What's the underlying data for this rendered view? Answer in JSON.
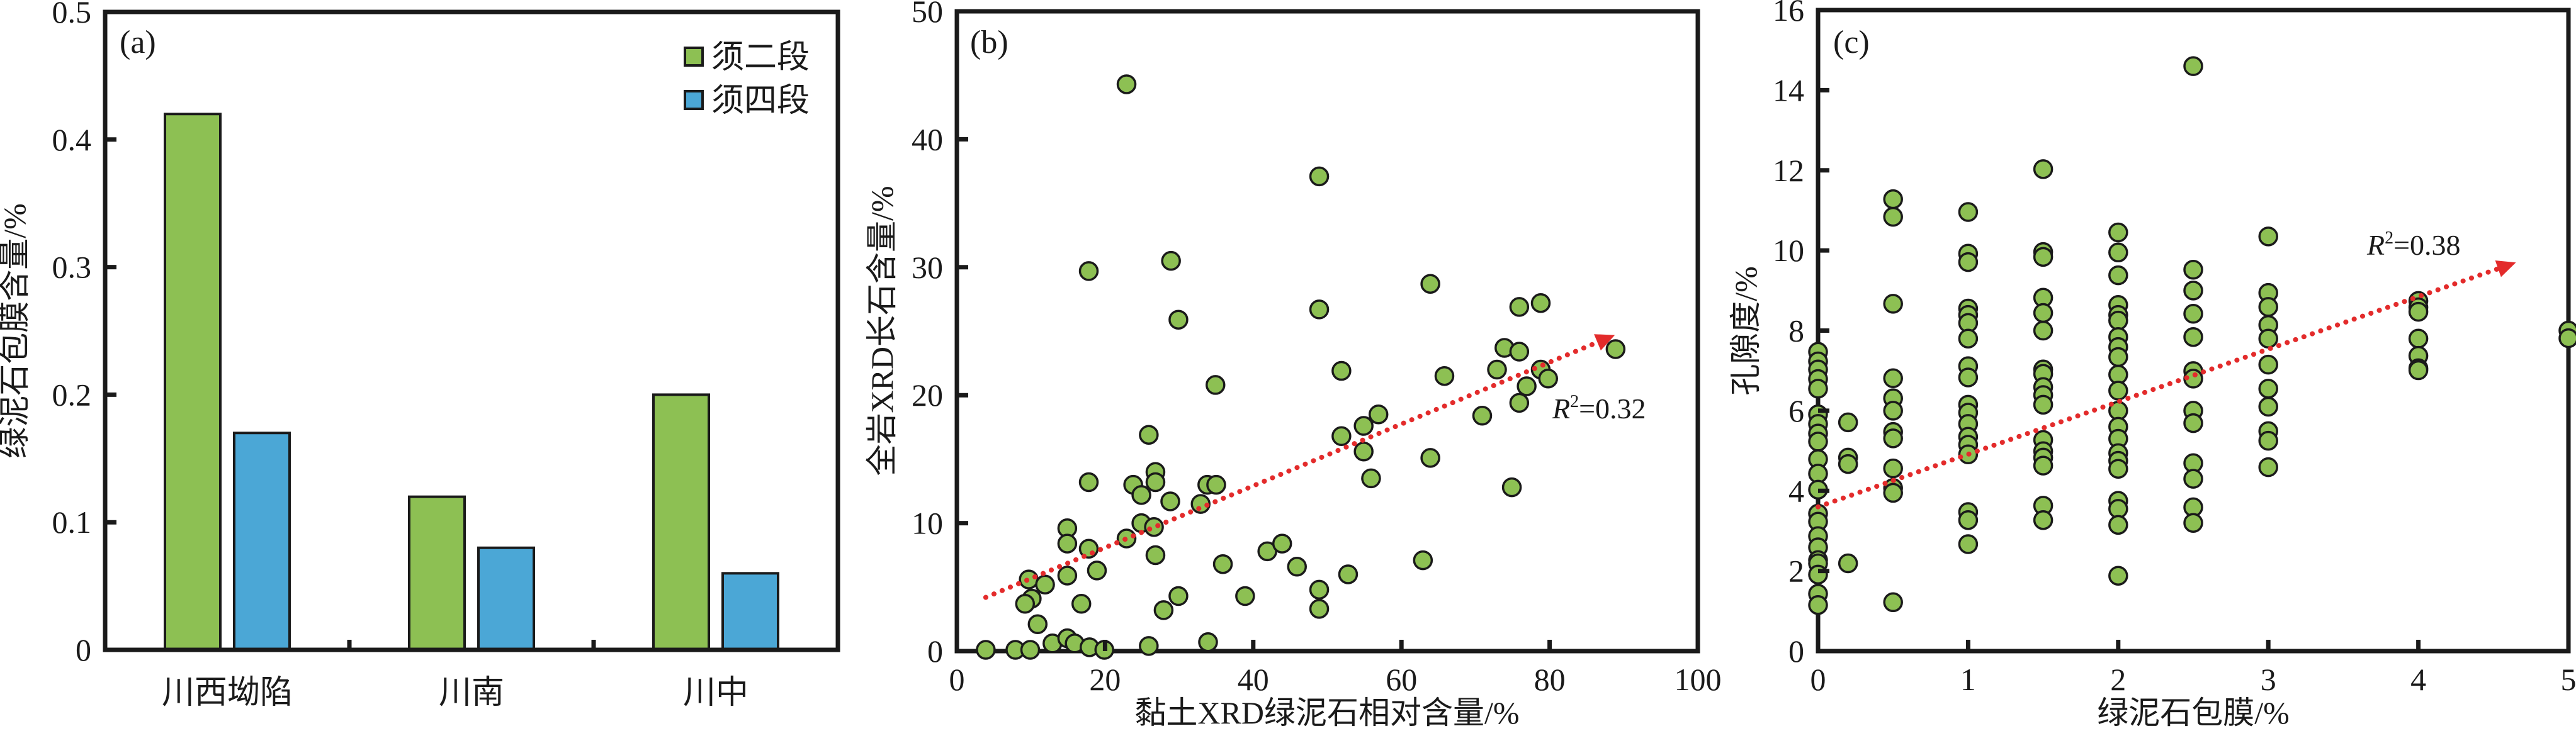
{
  "colors": {
    "green": "#8dc053",
    "blue": "#4ba7d6",
    "trend": "#e32b2b",
    "axis": "#1a1a1a"
  },
  "chart_data": [
    {
      "type": "bar",
      "panel_label": "(a)",
      "title": "",
      "xlabel": "",
      "ylabel": "绿泥石包膜含量/%",
      "ylim": [
        0,
        0.5
      ],
      "yticks": [
        "0",
        "0.1",
        "0.2",
        "0.3",
        "0.4",
        "0.5"
      ],
      "categories": [
        "川西坳陷",
        "川南",
        "川中"
      ],
      "series": [
        {
          "name": "须二段",
          "color": "#8dc053",
          "values": [
            0.42,
            0.12,
            0.2
          ]
        },
        {
          "name": "须四段",
          "color": "#4ba7d6",
          "values": [
            0.17,
            0.08,
            0.06
          ]
        }
      ],
      "legend": "top-right",
      "grid": false
    },
    {
      "type": "scatter",
      "panel_label": "(b)",
      "xlabel": "黏土XRD绿泥石相对含量/%",
      "ylabel": "全岩XRD长石含量/%",
      "xlim": [
        0,
        100
      ],
      "ylim": [
        0,
        50
      ],
      "xticks": [
        "0",
        "20",
        "40",
        "60",
        "80",
        "100"
      ],
      "yticks": [
        "0",
        "10",
        "20",
        "30",
        "40",
        "50"
      ],
      "annotation": {
        "prefix": "R",
        "sup": "2",
        "text": "=0.32"
      },
      "trendline": {
        "x": [
          3.9,
          88.8
        ],
        "y": [
          4.2,
          24.7
        ]
      },
      "grid": false,
      "points": [
        [
          22.9,
          44.3
        ],
        [
          48.9,
          37.1
        ],
        [
          17.8,
          29.7
        ],
        [
          28.9,
          30.5
        ],
        [
          29.9,
          25.9
        ],
        [
          48.9,
          26.7
        ],
        [
          63.9,
          28.7
        ],
        [
          75.9,
          26.9
        ],
        [
          78.8,
          27.2
        ],
        [
          73.9,
          23.7
        ],
        [
          75.9,
          23.4
        ],
        [
          88.9,
          23.6
        ],
        [
          51.9,
          21.9
        ],
        [
          65.8,
          21.5
        ],
        [
          72.9,
          22.0
        ],
        [
          78.8,
          22.0
        ],
        [
          79.8,
          21.3
        ],
        [
          76.9,
          20.7
        ],
        [
          75.9,
          19.4
        ],
        [
          70.9,
          18.4
        ],
        [
          56.9,
          18.5
        ],
        [
          54.9,
          17.6
        ],
        [
          51.9,
          16.8
        ],
        [
          54.9,
          15.6
        ],
        [
          63.9,
          15.1
        ],
        [
          55.9,
          13.5
        ],
        [
          74.9,
          12.8
        ],
        [
          62.9,
          7.1
        ],
        [
          52.8,
          6.0
        ],
        [
          34.9,
          20.8
        ],
        [
          25.9,
          16.9
        ],
        [
          26.8,
          14.0
        ],
        [
          26.8,
          13.2
        ],
        [
          17.8,
          13.2
        ],
        [
          23.8,
          13.0
        ],
        [
          24.9,
          12.2
        ],
        [
          28.8,
          11.7
        ],
        [
          32.9,
          11.5
        ],
        [
          33.8,
          13.0
        ],
        [
          35.0,
          13.0
        ],
        [
          24.9,
          10.0
        ],
        [
          26.6,
          9.7
        ],
        [
          22.9,
          8.8
        ],
        [
          14.9,
          9.6
        ],
        [
          14.9,
          8.4
        ],
        [
          17.8,
          8.0
        ],
        [
          26.8,
          7.5
        ],
        [
          35.9,
          6.8
        ],
        [
          41.9,
          7.8
        ],
        [
          43.9,
          8.4
        ],
        [
          45.9,
          6.6
        ],
        [
          48.9,
          4.8
        ],
        [
          48.9,
          3.3
        ],
        [
          9.7,
          5.6
        ],
        [
          11.9,
          5.2
        ],
        [
          10.1,
          4.1
        ],
        [
          9.2,
          3.7
        ],
        [
          10.9,
          2.1
        ],
        [
          14.9,
          5.9
        ],
        [
          18.9,
          6.3
        ],
        [
          16.8,
          3.7
        ],
        [
          29.9,
          4.3
        ],
        [
          27.9,
          3.2
        ],
        [
          38.9,
          4.3
        ],
        [
          3.9,
          0.1
        ],
        [
          7.9,
          0.1
        ],
        [
          9.9,
          0.1
        ],
        [
          12.9,
          0.6
        ],
        [
          14.9,
          1.0
        ],
        [
          15.9,
          0.6
        ],
        [
          17.9,
          0.3
        ],
        [
          19.9,
          0.1
        ],
        [
          25.9,
          0.4
        ],
        [
          33.9,
          0.7
        ]
      ]
    },
    {
      "type": "scatter",
      "panel_label": "(c)",
      "xlabel": "绿泥石包膜/%",
      "ylabel": "孔隙度/%",
      "xlim": [
        0,
        5
      ],
      "ylim": [
        0,
        16
      ],
      "xticks": [
        "0",
        "1",
        "2",
        "3",
        "4",
        "5"
      ],
      "yticks": [
        "0",
        "2",
        "4",
        "6",
        "8",
        "10",
        "12",
        "14",
        "16"
      ],
      "annotation": {
        "prefix": "R",
        "sup": "2",
        "text": "=0.38"
      },
      "trendline": {
        "x": [
          0,
          4.65
        ],
        "y": [
          3.6,
          9.7
        ]
      },
      "grid": false,
      "points": [
        [
          0,
          7.47
        ],
        [
          0,
          7.23
        ],
        [
          0,
          7.03
        ],
        [
          0,
          6.79
        ],
        [
          0,
          6.55
        ],
        [
          0,
          5.91
        ],
        [
          0,
          5.67
        ],
        [
          0,
          5.43
        ],
        [
          0,
          5.23
        ],
        [
          0,
          4.79
        ],
        [
          0,
          4.43
        ],
        [
          0,
          4.03
        ],
        [
          0,
          3.43
        ],
        [
          0,
          3.23
        ],
        [
          0,
          2.87
        ],
        [
          0,
          2.59
        ],
        [
          0,
          2.27
        ],
        [
          0,
          2.19
        ],
        [
          0,
          1.91
        ],
        [
          0,
          1.43
        ],
        [
          0,
          1.15
        ],
        [
          0.2,
          5.71
        ],
        [
          0.2,
          4.83
        ],
        [
          0.2,
          4.67
        ],
        [
          0.2,
          2.19
        ],
        [
          0.5,
          11.28
        ],
        [
          0.5,
          10.84
        ],
        [
          0.5,
          8.67
        ],
        [
          0.5,
          6.81
        ],
        [
          0.5,
          6.31
        ],
        [
          0.5,
          6.0
        ],
        [
          0.5,
          5.47
        ],
        [
          0.5,
          5.31
        ],
        [
          0.5,
          4.56
        ],
        [
          0.5,
          4.07
        ],
        [
          0.5,
          3.95
        ],
        [
          0.5,
          1.22
        ],
        [
          1,
          10.96
        ],
        [
          1,
          9.92
        ],
        [
          1,
          9.71
        ],
        [
          1,
          8.55
        ],
        [
          1,
          8.39
        ],
        [
          1,
          8.19
        ],
        [
          1,
          7.8
        ],
        [
          1,
          7.11
        ],
        [
          1,
          6.83
        ],
        [
          1,
          6.15
        ],
        [
          1,
          5.95
        ],
        [
          1,
          5.67
        ],
        [
          1,
          5.35
        ],
        [
          1,
          5.15
        ],
        [
          1,
          4.91
        ],
        [
          1,
          3.47
        ],
        [
          1,
          3.27
        ],
        [
          1,
          2.67
        ],
        [
          1.5,
          12.03
        ],
        [
          1.5,
          9.96
        ],
        [
          1.5,
          9.84
        ],
        [
          1.5,
          8.82
        ],
        [
          1.5,
          8.44
        ],
        [
          1.5,
          8.0
        ],
        [
          1.5,
          7.03
        ],
        [
          1.5,
          6.92
        ],
        [
          1.5,
          6.59
        ],
        [
          1.5,
          6.39
        ],
        [
          1.5,
          6.15
        ],
        [
          1.5,
          5.27
        ],
        [
          1.5,
          4.99
        ],
        [
          1.5,
          4.83
        ],
        [
          1.5,
          4.63
        ],
        [
          1.5,
          3.63
        ],
        [
          1.5,
          3.27
        ],
        [
          2,
          10.45
        ],
        [
          2,
          9.95
        ],
        [
          2,
          9.38
        ],
        [
          2,
          8.64
        ],
        [
          2,
          8.39
        ],
        [
          2,
          8.25
        ],
        [
          2,
          7.84
        ],
        [
          2,
          7.59
        ],
        [
          2,
          7.34
        ],
        [
          2,
          6.9
        ],
        [
          2,
          6.5
        ],
        [
          2,
          6.0
        ],
        [
          2,
          5.6
        ],
        [
          2,
          5.3
        ],
        [
          2,
          4.94
        ],
        [
          2,
          4.75
        ],
        [
          2,
          4.55
        ],
        [
          2,
          3.75
        ],
        [
          2,
          3.55
        ],
        [
          2,
          3.15
        ],
        [
          2,
          1.88
        ],
        [
          2.5,
          14.6
        ],
        [
          2.5,
          9.52
        ],
        [
          2.5,
          9.0
        ],
        [
          2.5,
          8.42
        ],
        [
          2.5,
          7.84
        ],
        [
          2.5,
          6.99
        ],
        [
          2.5,
          6.8
        ],
        [
          2.5,
          6.0
        ],
        [
          2.5,
          5.69
        ],
        [
          2.5,
          4.69
        ],
        [
          2.5,
          4.3
        ],
        [
          2.5,
          3.59
        ],
        [
          2.5,
          3.2
        ],
        [
          3,
          10.35
        ],
        [
          3,
          8.94
        ],
        [
          3,
          8.59
        ],
        [
          3,
          8.14
        ],
        [
          3,
          7.8
        ],
        [
          3,
          7.15
        ],
        [
          3,
          6.55
        ],
        [
          3,
          6.1
        ],
        [
          3,
          5.49
        ],
        [
          3,
          5.25
        ],
        [
          3,
          4.59
        ],
        [
          4,
          8.74
        ],
        [
          4,
          8.58
        ],
        [
          4,
          8.47
        ],
        [
          4,
          7.8
        ],
        [
          4,
          7.37
        ],
        [
          4,
          7.06
        ],
        [
          4,
          7.01
        ],
        [
          5,
          8.0
        ],
        [
          5,
          7.81
        ]
      ]
    }
  ]
}
